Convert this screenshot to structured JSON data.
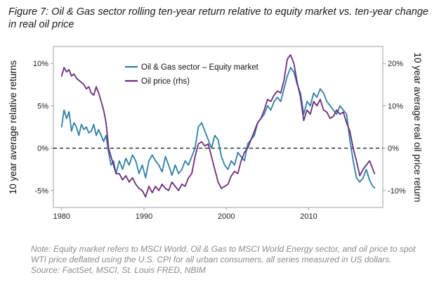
{
  "figure": {
    "title": "Figure 7: Oil & Gas sector rolling ten-year return relative to equity market vs. ten-year change in real oil price",
    "note": "Note: Equity market refers to MSCI World, Oil & Gas to MSCI World Energy sector, and oil price to spot WTI price deflated using the U.S. CPI for all urban consumers, all series measured in US dollars. Source: FactSet, MSCI, St. Louis FRED, NBIM"
  },
  "colors": {
    "oil_gas": "#2e7fa3",
    "oil_price": "#6b2c7b",
    "zero_line": "#111111",
    "axis": "#555555"
  },
  "chart_data": {
    "type": "line",
    "title": "",
    "xlabel": "",
    "ylabel": "10 year average relative returns",
    "y2label": "10 year average real oil price return",
    "xlim": [
      1979,
      2019
    ],
    "ylim": [
      -7,
      12
    ],
    "y2lim": [
      -14,
      24
    ],
    "x_ticks": [
      {
        "value": 1980,
        "label": "1980"
      },
      {
        "value": 1990,
        "label": "1990"
      },
      {
        "value": 2000,
        "label": "2000"
      },
      {
        "value": 2010,
        "label": "2010"
      }
    ],
    "y_ticks": [
      {
        "value": 10,
        "label": "10%"
      },
      {
        "value": 5,
        "label": "5%"
      },
      {
        "value": 0,
        "label": "0%"
      },
      {
        "value": -5,
        "label": "-5%"
      }
    ],
    "y2_ticks": [
      {
        "value": 20,
        "label": "20%"
      },
      {
        "value": 10,
        "label": "10%"
      },
      {
        "value": 0,
        "label": "0%"
      },
      {
        "value": -10,
        "label": "-10%"
      }
    ],
    "zero_line": {
      "value": 0,
      "style": "dashed"
    },
    "legend_position": "top-center",
    "series": [
      {
        "name": "Oil & Gas sector – Equity market",
        "axis": "left",
        "color": "#2e7fa3",
        "x": [
          1980.0,
          1980.3,
          1980.6,
          1980.9,
          1981.2,
          1981.5,
          1981.8,
          1982.1,
          1982.4,
          1982.7,
          1983.0,
          1983.3,
          1983.6,
          1983.9,
          1984.2,
          1984.5,
          1984.8,
          1985.1,
          1985.4,
          1985.7,
          1986.0,
          1986.3,
          1986.6,
          1987.0,
          1987.4,
          1987.8,
          1988.2,
          1988.6,
          1989.0,
          1989.4,
          1989.8,
          1990.2,
          1990.6,
          1991.0,
          1991.4,
          1991.8,
          1992.2,
          1992.6,
          1993.0,
          1993.4,
          1993.8,
          1994.2,
          1994.6,
          1995.0,
          1995.4,
          1995.8,
          1996.2,
          1996.6,
          1997.0,
          1997.4,
          1997.8,
          1998.2,
          1998.6,
          1999.0,
          1999.4,
          1999.8,
          2000.2,
          2000.6,
          2001.0,
          2001.4,
          2001.8,
          2002.2,
          2002.6,
          2003.0,
          2003.4,
          2003.8,
          2004.2,
          2004.6,
          2005.0,
          2005.4,
          2005.8,
          2006.2,
          2006.6,
          2007.0,
          2007.4,
          2007.8,
          2008.2,
          2008.6,
          2009.0,
          2009.4,
          2009.8,
          2010.2,
          2010.6,
          2011.0,
          2011.4,
          2011.8,
          2012.2,
          2012.6,
          2013.0,
          2013.4,
          2013.8,
          2014.2,
          2014.6,
          2015.0,
          2015.4,
          2015.8,
          2016.2,
          2016.6,
          2017.0,
          2017.4,
          2017.8,
          2018.0
        ],
        "values": [
          2.5,
          4.5,
          3.5,
          4.3,
          2.0,
          3.0,
          2.5,
          1.5,
          2.8,
          2.2,
          2.5,
          1.8,
          2.0,
          2.8,
          1.5,
          2.2,
          1.5,
          0.8,
          1.5,
          -0.5,
          -2.0,
          -1.5,
          -3.0,
          -1.5,
          -2.5,
          -1.2,
          -2.0,
          -0.8,
          -1.5,
          -3.0,
          -2.0,
          -3.5,
          -1.5,
          -0.8,
          -1.5,
          -2.0,
          -2.8,
          -1.0,
          -2.0,
          -3.2,
          -2.0,
          -3.0,
          -2.5,
          -1.5,
          -2.0,
          -1.0,
          0.0,
          2.5,
          3.0,
          2.0,
          1.0,
          0.0,
          1.5,
          1.0,
          -1.0,
          -2.0,
          -2.5,
          -1.5,
          -2.0,
          -0.5,
          -1.0,
          -1.5,
          0.5,
          1.0,
          1.5,
          3.0,
          3.5,
          4.0,
          5.0,
          4.5,
          5.5,
          6.0,
          5.5,
          7.0,
          8.5,
          9.5,
          9.0,
          7.5,
          6.5,
          4.0,
          5.5,
          5.0,
          6.5,
          6.0,
          7.0,
          6.5,
          5.5,
          5.0,
          4.5,
          4.0,
          5.0,
          4.5,
          4.0,
          1.0,
          -1.5,
          -3.5,
          -4.0,
          -3.5,
          -2.5,
          -3.8,
          -4.5,
          -4.7
        ]
      },
      {
        "name": "Oil price (rhs)",
        "axis": "right",
        "color": "#6b2c7b",
        "x": [
          1980.0,
          1980.3,
          1980.6,
          1980.9,
          1981.2,
          1981.5,
          1981.8,
          1982.1,
          1982.4,
          1982.7,
          1983.0,
          1983.3,
          1983.6,
          1983.9,
          1984.2,
          1984.5,
          1984.8,
          1985.1,
          1985.4,
          1985.7,
          1986.0,
          1986.3,
          1986.6,
          1987.0,
          1987.4,
          1987.8,
          1988.2,
          1988.6,
          1989.0,
          1989.4,
          1989.8,
          1990.2,
          1990.6,
          1991.0,
          1991.4,
          1991.8,
          1992.2,
          1992.6,
          1993.0,
          1993.4,
          1993.8,
          1994.2,
          1994.6,
          1995.0,
          1995.4,
          1995.8,
          1996.2,
          1996.6,
          1997.0,
          1997.4,
          1997.8,
          1998.2,
          1998.6,
          1999.0,
          1999.4,
          1999.8,
          2000.2,
          2000.6,
          2001.0,
          2001.4,
          2001.8,
          2002.2,
          2002.6,
          2003.0,
          2003.4,
          2003.8,
          2004.2,
          2004.6,
          2005.0,
          2005.4,
          2005.8,
          2006.2,
          2006.6,
          2007.0,
          2007.4,
          2007.8,
          2008.2,
          2008.6,
          2009.0,
          2009.4,
          2009.8,
          2010.2,
          2010.6,
          2011.0,
          2011.4,
          2011.8,
          2012.2,
          2012.6,
          2013.0,
          2013.4,
          2013.8,
          2014.2,
          2014.6,
          2015.0,
          2015.4,
          2015.8,
          2016.2,
          2016.6,
          2017.0,
          2017.4,
          2017.8,
          2018.0
        ],
        "values": [
          17.0,
          19.0,
          18.0,
          18.5,
          17.0,
          17.5,
          16.5,
          16.0,
          15.5,
          15.0,
          14.0,
          14.5,
          13.0,
          12.5,
          14.5,
          13.0,
          11.0,
          9.0,
          6.0,
          0.0,
          -2.0,
          -4.0,
          -6.0,
          -6.0,
          -7.5,
          -6.5,
          -8.0,
          -7.0,
          -8.5,
          -9.5,
          -10.0,
          -11.5,
          -9.0,
          -10.5,
          -9.0,
          -10.0,
          -8.5,
          -9.5,
          -10.0,
          -8.0,
          -9.0,
          -10.0,
          -8.5,
          -9.0,
          -7.0,
          -6.0,
          -2.0,
          1.0,
          1.5,
          0.5,
          1.0,
          -2.0,
          -5.0,
          -8.0,
          -9.5,
          -9.0,
          -8.5,
          -6.5,
          -5.5,
          -6.0,
          -3.0,
          -1.0,
          0.0,
          2.0,
          4.0,
          6.0,
          7.0,
          9.0,
          11.5,
          11.0,
          12.5,
          13.5,
          13.0,
          16.0,
          21.0,
          22.0,
          20.0,
          15.5,
          12.0,
          6.5,
          9.0,
          8.0,
          11.0,
          10.0,
          11.5,
          9.0,
          8.5,
          7.0,
          7.5,
          9.0,
          8.0,
          8.5,
          6.0,
          4.0,
          0.0,
          -3.0,
          -6.5,
          -5.0,
          -4.0,
          -3.0,
          -5.0,
          -6.0
        ]
      }
    ]
  }
}
